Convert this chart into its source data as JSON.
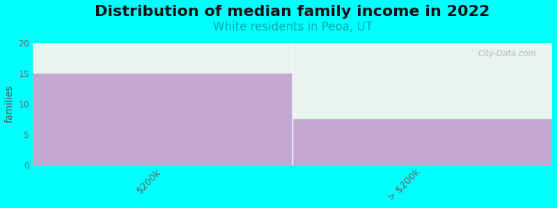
{
  "title": "Distribution of median family income in 2022",
  "subtitle": "White residents in Peoa, UT",
  "categories": [
    "$200k",
    "> $200k"
  ],
  "values": [
    15,
    7.5
  ],
  "bar_max": 20,
  "ylim": [
    0,
    20
  ],
  "yticks": [
    0,
    5,
    10,
    15,
    20
  ],
  "ylabel": "families",
  "background_color": "#00FFFF",
  "plot_bg_color": "#FFFFFF",
  "bar_color": "#C4A8D4",
  "bar_bg_color": "#E8F5EE",
  "title_fontsize": 16,
  "subtitle_fontsize": 12,
  "subtitle_color": "#00AAAA",
  "watermark": "City-Data.com",
  "figsize": [
    8.0,
    3.0
  ],
  "dpi": 100
}
